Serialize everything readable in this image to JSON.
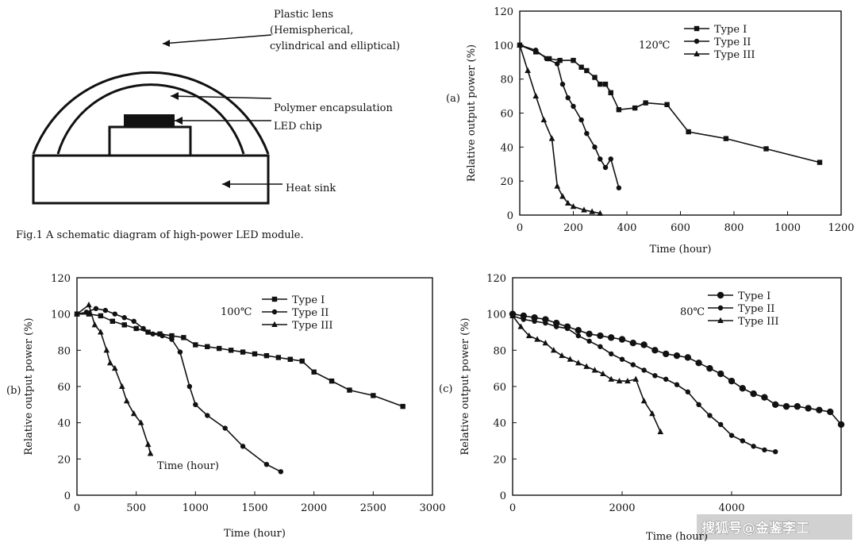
{
  "diagram": {
    "labels": {
      "lens": [
        "Plastic lens",
        "(Hemispherical,",
        "cylindrical and elliptical)"
      ],
      "encap": "Polymer encapsulation",
      "chip": "LED chip",
      "sink": "Heat sink"
    },
    "caption": "Fig.1 A schematic diagram of high-power LED module."
  },
  "watermark": "搜狐号@金鉴李工",
  "chart_data": [
    {
      "id": "a",
      "panel_label": "(a)",
      "type": "line",
      "annotation": "120℃",
      "xlabel": "Time (hour)",
      "ylabel": "Relative output power (%)",
      "xlim": [
        0,
        1200
      ],
      "ylim": [
        0,
        120
      ],
      "xticks": [
        "0",
        "200",
        "400",
        "600",
        "800",
        "1000",
        "1200"
      ],
      "yticks": [
        "0",
        "20",
        "40",
        "60",
        "80",
        "100",
        "120"
      ],
      "series": [
        {
          "name": "Type I",
          "marker": "square",
          "x": [
            0,
            60,
            110,
            150,
            200,
            230,
            250,
            280,
            300,
            320,
            340,
            370,
            430,
            470,
            550,
            630,
            770,
            920,
            1120
          ],
          "y": [
            100,
            96,
            92,
            91,
            91,
            87,
            85,
            81,
            77,
            77,
            72,
            62,
            63,
            66,
            65,
            49,
            45,
            39,
            31
          ]
        },
        {
          "name": "Type II",
          "marker": "circle",
          "x": [
            0,
            60,
            100,
            140,
            160,
            180,
            200,
            230,
            250,
            280,
            300,
            320,
            340,
            370
          ],
          "y": [
            100,
            97,
            92,
            89,
            77,
            69,
            64,
            56,
            48,
            40,
            33,
            28,
            33,
            16
          ]
        },
        {
          "name": "Type III",
          "marker": "triangle",
          "x": [
            0,
            30,
            60,
            90,
            120,
            140,
            160,
            180,
            200,
            240,
            270,
            300
          ],
          "y": [
            100,
            85,
            70,
            56,
            45,
            17,
            11,
            7,
            5,
            3,
            2,
            1
          ]
        }
      ]
    },
    {
      "id": "b",
      "panel_label": "(b)",
      "type": "line",
      "annotation": "100℃",
      "xlabel": "Time (hour)",
      "ylabel": "Relative output power (%)",
      "inner_label": "Time (hour)",
      "xlim": [
        0,
        3000
      ],
      "ylim": [
        0,
        120
      ],
      "xticks": [
        "0",
        "500",
        "1000",
        "1500",
        "2000",
        "2500",
        "3000"
      ],
      "yticks": [
        "0",
        "20",
        "40",
        "60",
        "80",
        "100",
        "120"
      ],
      "series": [
        {
          "name": "Type I",
          "marker": "square",
          "x": [
            0,
            100,
            200,
            300,
            400,
            500,
            600,
            700,
            800,
            900,
            1000,
            1100,
            1200,
            1300,
            1400,
            1500,
            1600,
            1700,
            1800,
            1900,
            2000,
            2150,
            2300,
            2500,
            2750
          ],
          "y": [
            100,
            100,
            99,
            96,
            94,
            92,
            90,
            89,
            88,
            87,
            83,
            82,
            81,
            80,
            79,
            78,
            77,
            76,
            75,
            74,
            68,
            63,
            58,
            55,
            49
          ]
        },
        {
          "name": "Type II",
          "marker": "circle",
          "x": [
            0,
            80,
            160,
            240,
            320,
            400,
            480,
            560,
            640,
            720,
            800,
            870,
            950,
            1000,
            1100,
            1250,
            1400,
            1600,
            1720
          ],
          "y": [
            100,
            101,
            103,
            102,
            100,
            98,
            96,
            92,
            89,
            88,
            86,
            79,
            60,
            50,
            44,
            37,
            27,
            17,
            13
          ]
        },
        {
          "name": "Type III",
          "marker": "triangle",
          "x": [
            0,
            100,
            150,
            200,
            250,
            280,
            320,
            380,
            420,
            480,
            540,
            600,
            620
          ],
          "y": [
            100,
            105,
            94,
            90,
            80,
            73,
            70,
            60,
            52,
            45,
            40,
            28,
            23
          ]
        }
      ]
    },
    {
      "id": "c",
      "panel_label": "(c)",
      "type": "line",
      "annotation": "80℃",
      "xlabel": "Time (hour)",
      "ylabel": "Relative output power (%)",
      "xlim": [
        0,
        6000
      ],
      "ylim": [
        0,
        120
      ],
      "xticks": [
        "0",
        "2000",
        "4000"
      ],
      "yticks": [
        "0",
        "20",
        "40",
        "60",
        "80",
        "100",
        "120"
      ],
      "series": [
        {
          "name": "Type I",
          "marker": "circle-filled",
          "x": [
            0,
            200,
            400,
            600,
            800,
            1000,
            1200,
            1400,
            1600,
            1800,
            2000,
            2200,
            2400,
            2600,
            2800,
            3000,
            3200,
            3400,
            3600,
            3800,
            4000,
            4200,
            4400,
            4600,
            4800,
            5000,
            5200,
            5400,
            5600,
            5800,
            6000
          ],
          "y": [
            100,
            99,
            98,
            97,
            95,
            93,
            91,
            89,
            88,
            87,
            86,
            84,
            83,
            80,
            78,
            77,
            76,
            73,
            70,
            67,
            63,
            59,
            56,
            54,
            50,
            49,
            49,
            48,
            47,
            46,
            39
          ]
        },
        {
          "name": "Type II",
          "marker": "circle",
          "x": [
            0,
            200,
            400,
            600,
            800,
            1000,
            1200,
            1400,
            1600,
            1800,
            2000,
            2200,
            2400,
            2600,
            2800,
            3000,
            3200,
            3400,
            3600,
            3800,
            4000,
            4200,
            4400,
            4600,
            4800
          ],
          "y": [
            99,
            97,
            96,
            95,
            93,
            92,
            88,
            85,
            82,
            78,
            75,
            72,
            69,
            66,
            64,
            61,
            57,
            50,
            44,
            39,
            33,
            30,
            27,
            25,
            24
          ]
        },
        {
          "name": "Type III",
          "marker": "triangle",
          "x": [
            0,
            150,
            300,
            450,
            600,
            750,
            900,
            1050,
            1200,
            1350,
            1500,
            1650,
            1800,
            1950,
            2100,
            2250,
            2400,
            2550,
            2700
          ],
          "y": [
            99,
            93,
            88,
            86,
            84,
            80,
            77,
            75,
            73,
            71,
            69,
            67,
            64,
            63,
            63,
            64,
            52,
            45,
            35
          ]
        }
      ]
    }
  ]
}
